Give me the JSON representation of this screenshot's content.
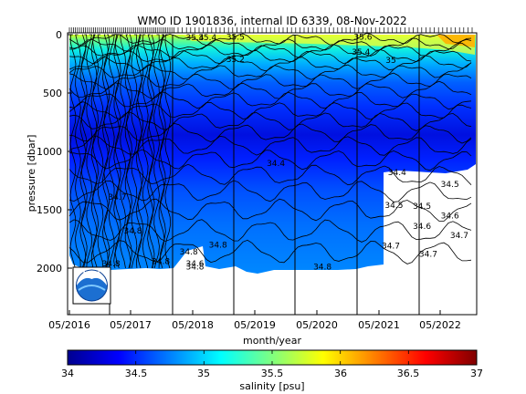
{
  "chart_data": {
    "type": "heatmap",
    "title": "WMO ID 1901836, internal ID 6339, 08-Nov-2022",
    "xlabel": "month/year",
    "ylabel": "pressure [dbar]",
    "x_tick_labels": [
      "05/2016",
      "05/2017",
      "05/2018",
      "05/2019",
      "05/2020",
      "05/2021",
      "05/2022"
    ],
    "y_tick_labels": [
      "0",
      "500",
      "1000",
      "1500",
      "2000"
    ],
    "ylim": [
      2400,
      0
    ],
    "y_reversed": true,
    "profile_time_marks": "ticks along top axis, one per profile",
    "year_separator_lines": true,
    "colorbar": {
      "label": "salinity [psu]",
      "range": [
        34,
        37
      ],
      "tick_labels": [
        "34",
        "34.5",
        "35",
        "35.5",
        "36",
        "36.5",
        "37"
      ],
      "colormap": "jet",
      "colors": [
        "#00008f",
        "#0000ff",
        "#00ffff",
        "#ffff00",
        "#ff0000",
        "#800000"
      ]
    },
    "contour_labels": [
      {
        "text": "35.4",
        "time": 2018.35,
        "pressure": 25
      },
      {
        "text": "35.4",
        "time": 2018.55,
        "pressure": 25
      },
      {
        "text": "35.5",
        "time": 2019.0,
        "pressure": 20
      },
      {
        "text": "35.6",
        "time": 2021.05,
        "pressure": 20
      },
      {
        "text": "35.4",
        "time": 2021.02,
        "pressure": 150
      },
      {
        "text": "35.2",
        "time": 2019.0,
        "pressure": 210
      },
      {
        "text": "35",
        "time": 2021.5,
        "pressure": 220
      },
      {
        "text": "34.4",
        "time": 2019.65,
        "pressure": 1100
      },
      {
        "text": "34.4",
        "time": 2021.6,
        "pressure": 1180
      },
      {
        "text": "34.5",
        "time": 2021.55,
        "pressure": 1460
      },
      {
        "text": "34.5",
        "time": 2022.0,
        "pressure": 1470
      },
      {
        "text": "34.5",
        "time": 2022.45,
        "pressure": 1280
      },
      {
        "text": "34.6",
        "time": 2022.0,
        "pressure": 1640
      },
      {
        "text": "34.6",
        "time": 2022.45,
        "pressure": 1550
      },
      {
        "text": "34.7",
        "time": 2022.6,
        "pressure": 1720
      },
      {
        "text": "34.7",
        "time": 2021.5,
        "pressure": 1810
      },
      {
        "text": "34.7",
        "time": 2022.1,
        "pressure": 1880
      },
      {
        "text": "34.7",
        "time": 2017.1,
        "pressure": 1390
      },
      {
        "text": "34.8",
        "time": 2017.35,
        "pressure": 1680
      },
      {
        "text": "34.8",
        "time": 2018.72,
        "pressure": 1800
      },
      {
        "text": "34.8",
        "time": 2017.0,
        "pressure": 1960
      },
      {
        "text": "34.8",
        "time": 2017.8,
        "pressure": 1940
      },
      {
        "text": "34.8",
        "time": 2018.35,
        "pressure": 1990
      },
      {
        "text": "34.8",
        "time": 2020.4,
        "pressure": 1990
      },
      {
        "text": "34.8",
        "time": 2018.25,
        "pressure": 1860
      },
      {
        "text": "34.6",
        "time": 2018.35,
        "pressure": 1960
      }
    ]
  }
}
